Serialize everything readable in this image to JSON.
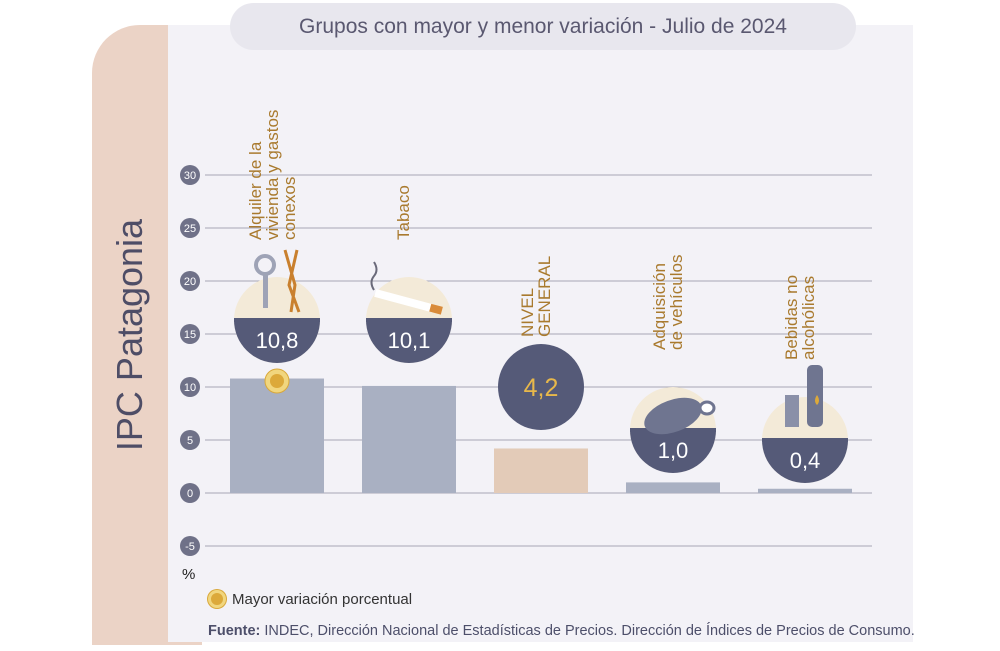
{
  "title": "Grupos con mayor y menor variación - Julio de 2024",
  "side_label": "IPC Patagonia",
  "chart_data": {
    "type": "bar",
    "title": "Grupos con mayor y menor variación - Julio de 2024",
    "ylabel": "%",
    "xlabel": "",
    "ylim": [
      -5,
      30
    ],
    "yticks": [
      "30",
      "25",
      "20",
      "15",
      "10",
      "5",
      "0",
      "-5"
    ],
    "grid": true,
    "categories": [
      "Alquiler de la vivienda y gastos conexos",
      "Tabaco",
      "NIVEL GENERAL",
      "Adquisición de vehículos",
      "Bebidas no alcohólicas"
    ],
    "category_lines": [
      [
        "Alquiler de la",
        "vivienda y gastos",
        "conexos"
      ],
      [
        "Tabaco"
      ],
      [
        "NIVEL",
        "GENERAL"
      ],
      [
        "Adquisición",
        "de vehículos"
      ],
      [
        "Bebidas no",
        "alcohólicas"
      ]
    ],
    "values": [
      10.8,
      10.1,
      4.2,
      1.0,
      0.4
    ],
    "value_labels": [
      "10,8",
      "10,1",
      "4,2",
      "1,0",
      "0,4"
    ],
    "icons": [
      "keys-and-pliers-icon",
      "cigarette-icon",
      "",
      "car-icon",
      "bottles-icon"
    ],
    "highlight_index": 0,
    "colors": {
      "bar": "#a9b0c2",
      "general_bar": "#e3cbb8",
      "label": "#a97a2e",
      "bubble": "#555a78",
      "highlight": "#dca93a"
    }
  },
  "legend": {
    "label": "Mayor variación porcentual"
  },
  "unit": "%",
  "source": {
    "prefix": "Fuente:",
    "text": " INDEC, Dirección Nacional de Estadísticas de Precios. Dirección de Índices de Precios de Consumo."
  }
}
